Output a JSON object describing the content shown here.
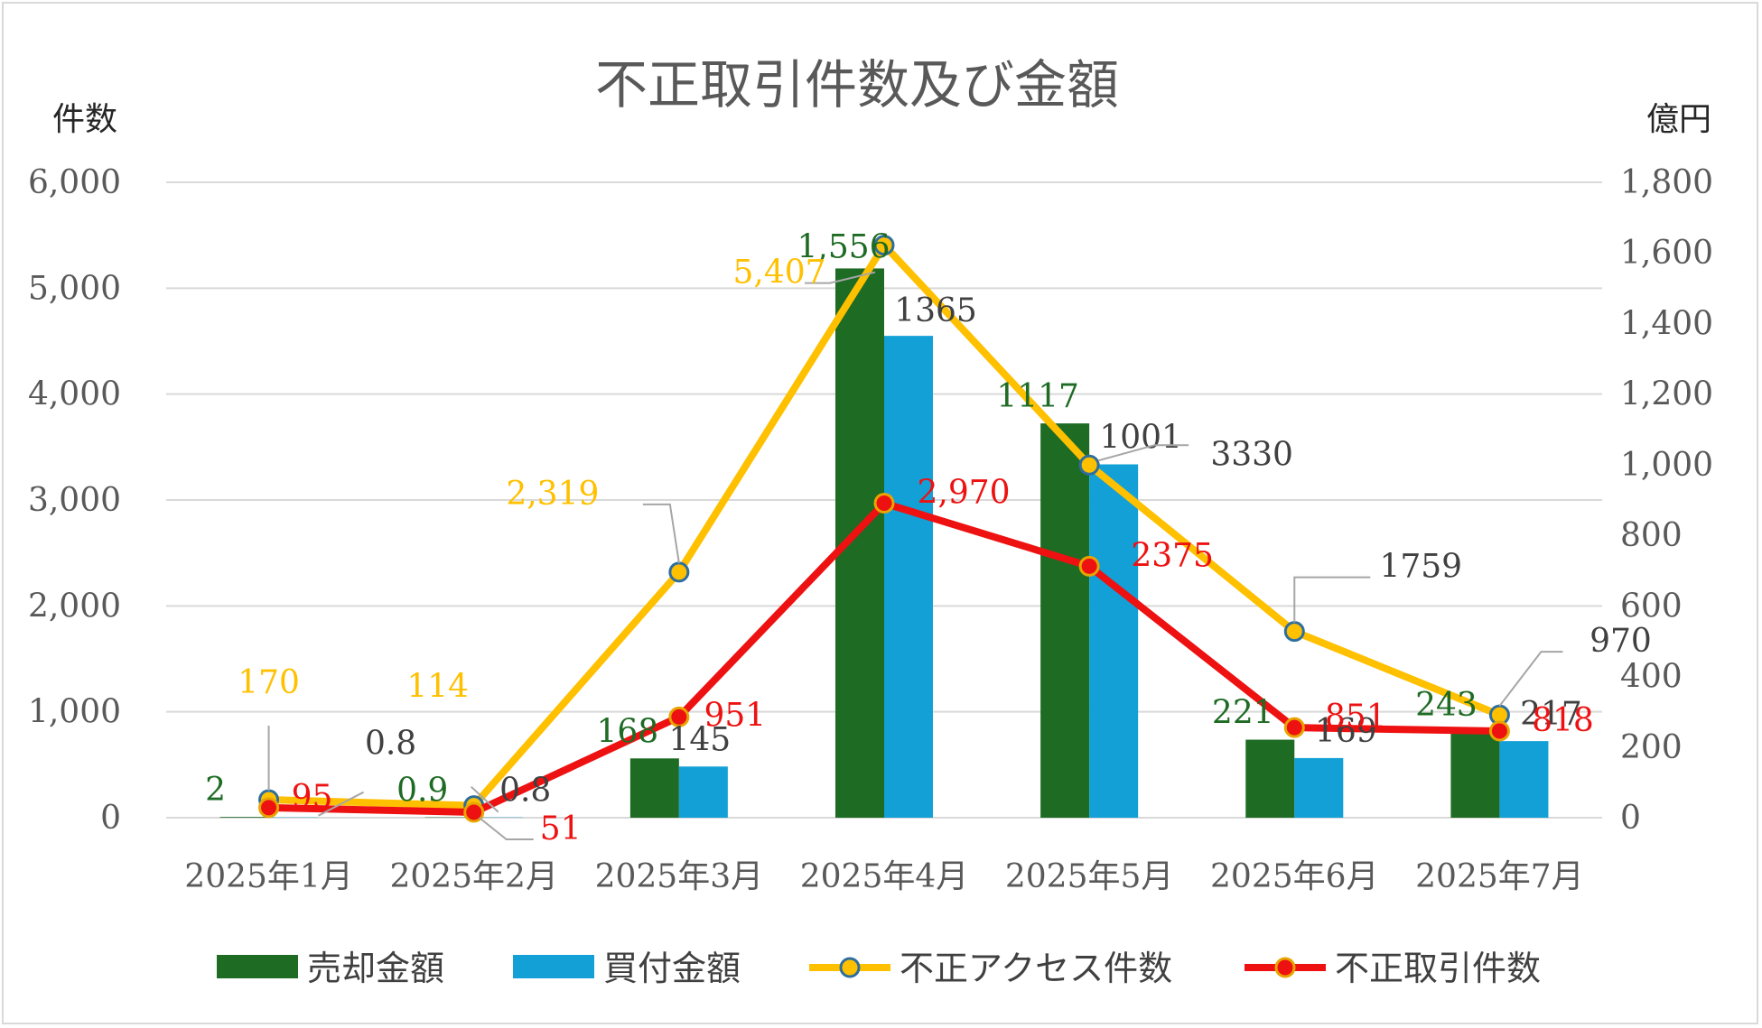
{
  "chart_data": {
    "type": "bar+line",
    "title": "不正取引件数及び金額",
    "y_left_label": "件数",
    "y_right_label": "億円",
    "y_left_lim": [
      0,
      6000
    ],
    "y_right_lim": [
      0,
      1800
    ],
    "y_left_ticks": [
      "0",
      "1,000",
      "2,000",
      "3,000",
      "4,000",
      "5,000",
      "6,000"
    ],
    "y_right_ticks": [
      "0",
      "200",
      "400",
      "600",
      "800",
      "1,000",
      "1,200",
      "1,400",
      "1,600",
      "1,800"
    ],
    "grid": true,
    "legend_position": "bottom",
    "categories": [
      "2025年1月",
      "2025年2月",
      "2025年3月",
      "2025年4月",
      "2025年5月",
      "2025年6月",
      "2025年7月"
    ],
    "series": [
      {
        "name": "売却金額",
        "kind": "bar",
        "axis": "right",
        "color": "#1e6b24",
        "label_color": "#1e6b24",
        "values": [
          2,
          0.9,
          168,
          1556,
          1117,
          221,
          243
        ],
        "labels": [
          "2",
          "0.9",
          "168",
          "1,556",
          "1117",
          "221",
          "243"
        ]
      },
      {
        "name": "買付金額",
        "kind": "bar",
        "axis": "right",
        "color": "#12a0d6",
        "label_color": "#404040",
        "values": [
          0.8,
          0.8,
          145,
          1365,
          1001,
          169,
          217
        ],
        "labels": [
          "0.8",
          "0.8",
          "145",
          "1365",
          "1001",
          "169",
          "217"
        ]
      },
      {
        "name": "不正アクセス件数",
        "kind": "line",
        "axis": "left",
        "color": "#ffc000",
        "marker_edge": "#2e6e9e",
        "values": [
          170,
          114,
          2319,
          5407,
          3330,
          1759,
          970
        ],
        "labels": [
          "170",
          "114",
          "2,319",
          "5,407",
          "3330",
          "1759",
          "970"
        ]
      },
      {
        "name": "不正取引件数",
        "kind": "line",
        "axis": "left",
        "color": "#ee1111",
        "marker_edge": "#e8a400",
        "values": [
          95,
          51,
          951,
          2970,
          2375,
          851,
          818
        ],
        "labels": [
          "95",
          "51",
          "951",
          "2,970",
          "2375",
          "851",
          "818"
        ]
      }
    ]
  }
}
